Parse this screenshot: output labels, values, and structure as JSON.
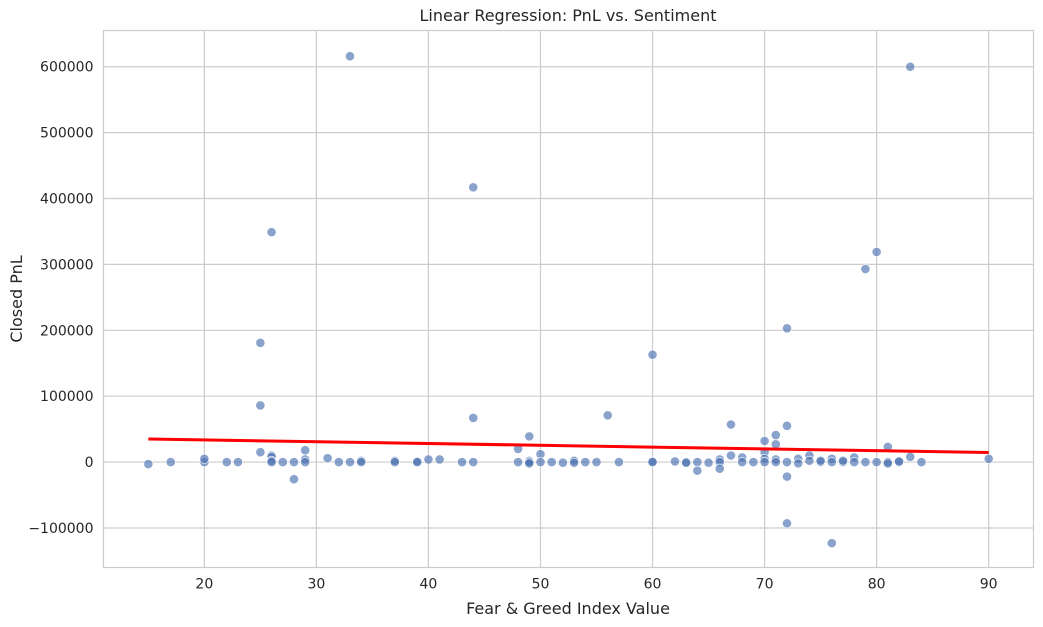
{
  "chart_data": {
    "type": "scatter",
    "title": "Linear Regression: PnL vs. Sentiment",
    "xlabel": "Fear & Greed Index Value",
    "ylabel": "Closed PnL",
    "xlim": [
      11,
      94
    ],
    "ylim": [
      -160000,
      655000
    ],
    "x_ticks": [
      20,
      30,
      40,
      50,
      60,
      70,
      80,
      90
    ],
    "y_ticks": [
      -100000,
      0,
      100000,
      200000,
      300000,
      400000,
      500000,
      600000
    ],
    "grid": true,
    "colors": {
      "points": "#4c72b0",
      "regression_line": "#ff0000",
      "grid": "#cccccc",
      "frame": "#cccccc"
    },
    "points": [
      {
        "x": 15,
        "y": -3000
      },
      {
        "x": 17,
        "y": 0
      },
      {
        "x": 20,
        "y": 0
      },
      {
        "x": 20,
        "y": 5000
      },
      {
        "x": 22,
        "y": 0
      },
      {
        "x": 23,
        "y": 0
      },
      {
        "x": 25,
        "y": 181000
      },
      {
        "x": 25,
        "y": 86000
      },
      {
        "x": 25,
        "y": 15000
      },
      {
        "x": 26,
        "y": 349000
      },
      {
        "x": 26,
        "y": 10000
      },
      {
        "x": 26,
        "y": 8000
      },
      {
        "x": 26,
        "y": 2000
      },
      {
        "x": 26,
        "y": 0
      },
      {
        "x": 27,
        "y": 0
      },
      {
        "x": 28,
        "y": 0
      },
      {
        "x": 28,
        "y": -26000
      },
      {
        "x": 29,
        "y": 18000
      },
      {
        "x": 29,
        "y": 4000
      },
      {
        "x": 29,
        "y": 0
      },
      {
        "x": 31,
        "y": 6000
      },
      {
        "x": 32,
        "y": 0
      },
      {
        "x": 33,
        "y": 616000
      },
      {
        "x": 33,
        "y": 0
      },
      {
        "x": 34,
        "y": 2000
      },
      {
        "x": 34,
        "y": 0
      },
      {
        "x": 37,
        "y": 2000
      },
      {
        "x": 37,
        "y": 0
      },
      {
        "x": 39,
        "y": 1000
      },
      {
        "x": 39,
        "y": 0
      },
      {
        "x": 40,
        "y": 4000
      },
      {
        "x": 41,
        "y": 4000
      },
      {
        "x": 43,
        "y": 0
      },
      {
        "x": 44,
        "y": 417000
      },
      {
        "x": 44,
        "y": 67000
      },
      {
        "x": 44,
        "y": 0
      },
      {
        "x": 48,
        "y": 20000
      },
      {
        "x": 48,
        "y": 0
      },
      {
        "x": 49,
        "y": 39000
      },
      {
        "x": 49,
        "y": 2000
      },
      {
        "x": 49,
        "y": 0
      },
      {
        "x": 49,
        "y": -2000
      },
      {
        "x": 50,
        "y": 12000
      },
      {
        "x": 50,
        "y": 0
      },
      {
        "x": 51,
        "y": 0
      },
      {
        "x": 52,
        "y": -1000
      },
      {
        "x": 53,
        "y": 2000
      },
      {
        "x": 53,
        "y": -1000
      },
      {
        "x": 54,
        "y": 0
      },
      {
        "x": 55,
        "y": 0
      },
      {
        "x": 56,
        "y": 71000
      },
      {
        "x": 57,
        "y": 0
      },
      {
        "x": 60,
        "y": 163000
      },
      {
        "x": 60,
        "y": 1000
      },
      {
        "x": 60,
        "y": 0
      },
      {
        "x": 62,
        "y": 1000
      },
      {
        "x": 63,
        "y": 0
      },
      {
        "x": 63,
        "y": -1000
      },
      {
        "x": 64,
        "y": 0
      },
      {
        "x": 64,
        "y": -13000
      },
      {
        "x": 65,
        "y": -1000
      },
      {
        "x": 66,
        "y": 4000
      },
      {
        "x": 66,
        "y": 0
      },
      {
        "x": 66,
        "y": -10000
      },
      {
        "x": 67,
        "y": 57000
      },
      {
        "x": 67,
        "y": 10000
      },
      {
        "x": 68,
        "y": 7000
      },
      {
        "x": 68,
        "y": 0
      },
      {
        "x": 69,
        "y": 0
      },
      {
        "x": 70,
        "y": 32000
      },
      {
        "x": 70,
        "y": 15000
      },
      {
        "x": 70,
        "y": 5000
      },
      {
        "x": 70,
        "y": 0
      },
      {
        "x": 71,
        "y": 41000
      },
      {
        "x": 71,
        "y": 27000
      },
      {
        "x": 71,
        "y": 4000
      },
      {
        "x": 71,
        "y": 0
      },
      {
        "x": 72,
        "y": 203000
      },
      {
        "x": 72,
        "y": 55000
      },
      {
        "x": 72,
        "y": 0
      },
      {
        "x": 72,
        "y": -22000
      },
      {
        "x": 72,
        "y": -93000
      },
      {
        "x": 73,
        "y": 5000
      },
      {
        "x": 73,
        "y": -2000
      },
      {
        "x": 74,
        "y": 10000
      },
      {
        "x": 74,
        "y": 2000
      },
      {
        "x": 75,
        "y": 0
      },
      {
        "x": 75,
        "y": 2000
      },
      {
        "x": 76,
        "y": 5000
      },
      {
        "x": 76,
        "y": 0
      },
      {
        "x": 76,
        "y": -123000
      },
      {
        "x": 77,
        "y": 0
      },
      {
        "x": 77,
        "y": 2000
      },
      {
        "x": 78,
        "y": 7000
      },
      {
        "x": 78,
        "y": 0
      },
      {
        "x": 79,
        "y": 293000
      },
      {
        "x": 79,
        "y": 0
      },
      {
        "x": 80,
        "y": 319000
      },
      {
        "x": 80,
        "y": 0
      },
      {
        "x": 81,
        "y": 23000
      },
      {
        "x": 81,
        "y": 0
      },
      {
        "x": 81,
        "y": -2000
      },
      {
        "x": 82,
        "y": 0
      },
      {
        "x": 82,
        "y": 1000
      },
      {
        "x": 83,
        "y": 600000
      },
      {
        "x": 83,
        "y": 8000
      },
      {
        "x": 84,
        "y": 0
      },
      {
        "x": 90,
        "y": 5000
      }
    ],
    "regression_line": {
      "x": [
        15,
        90
      ],
      "y": [
        35000,
        14500
      ]
    }
  }
}
